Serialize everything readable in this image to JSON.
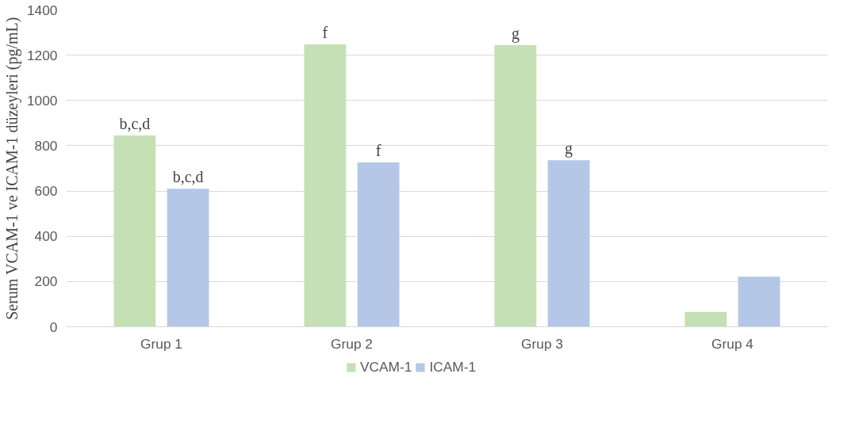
{
  "chart_data": {
    "type": "bar",
    "ylabel": "Serum VCAM-1 ve ICAM-1 düzeyleri (pg/mL)",
    "categories": [
      "Grup 1",
      "Grup 2",
      "Grup 3",
      "Grup 4"
    ],
    "series": [
      {
        "name": "VCAM-1",
        "color": "#c5e0b4",
        "values": [
          845,
          1248,
          1244,
          66
        ],
        "value_labels": [
          "b,c,d",
          "f",
          "g",
          null
        ]
      },
      {
        "name": "ICAM-1",
        "color": "#b4c7e7",
        "values": [
          610,
          726,
          736,
          221
        ],
        "value_labels": [
          "b,c,d",
          "f",
          "g",
          null
        ]
      }
    ],
    "ylim": [
      0,
      1400
    ],
    "yticks": [
      0,
      200,
      400,
      600,
      800,
      1000,
      1200,
      1400
    ],
    "grid": "y",
    "legend": "bottom"
  }
}
